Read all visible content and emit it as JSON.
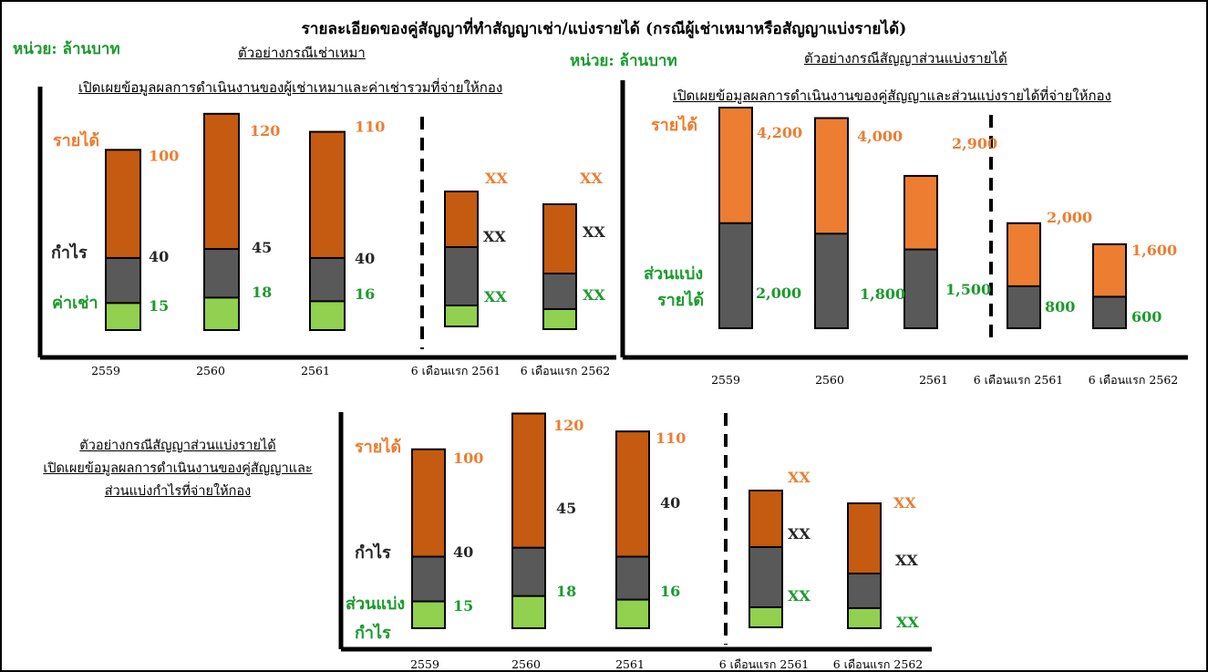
{
  "title": "รายละเอียดของคู่สัญญาที่ทำสัญญาเช่า/แบ่งรายได้ (กรณีผู้เช่าเหมาหรือสัญญาแบ่งรายได้)",
  "unit_label": "หน่วย: ล้านบาท",
  "colors": {
    "revenue_dark": "#c55a11",
    "revenue_light": "#ed7d31",
    "profit": "#595959",
    "share": "#92d050",
    "green_text": "#1a9b2e",
    "dark_text": "#262626"
  },
  "chart_data": [
    {
      "type": "bar",
      "heading": "ตัวอย่างกรณีเช่าเหมา",
      "subtitle": "เปิดเผยข้อมูลผลการดำเนินงานของผู้เช่าเหมาและค่าเช่ารวมที่จ่ายให้กอง",
      "categories": [
        "2559",
        "2560",
        "2561",
        "6 เดือนแรก 2561",
        "6 เดือนแรก 2562"
      ],
      "legend_labels": {
        "revenue": "รายได้",
        "profit": "กำไร",
        "share": "ค่าเช่า"
      },
      "series": [
        {
          "name": "รายได้",
          "values": [
            100,
            120,
            110,
            null,
            null
          ],
          "labels": [
            "100",
            "120",
            "110",
            "XX",
            "XX"
          ]
        },
        {
          "name": "กำไร",
          "values": [
            40,
            45,
            40,
            null,
            null
          ],
          "labels": [
            "40",
            "45",
            "40",
            "XX",
            "XX"
          ]
        },
        {
          "name": "ค่าเช่า",
          "values": [
            15,
            18,
            16,
            null,
            null
          ],
          "labels": [
            "15",
            "18",
            "16",
            "XX",
            "XX"
          ]
        }
      ]
    },
    {
      "type": "bar",
      "heading": "ตัวอย่างกรณีสัญญาส่วนแบ่งรายได้",
      "subtitle": "เปิดเผยข้อมูลผลการดำเนินงานของคู่สัญญาและส่วนแบ่งรายได้ที่จ่ายให้กอง",
      "categories": [
        "2559",
        "2560",
        "2561",
        "6 เดือนแรก 2561",
        "6 เดือนแรก 2562"
      ],
      "legend_labels": {
        "revenue": "รายได้",
        "share_line1": "ส่วนแบ่ง",
        "share_line2": "รายได้"
      },
      "series": [
        {
          "name": "รายได้",
          "values": [
            4200,
            4000,
            2900,
            2000,
            1600
          ],
          "labels": [
            "4,200",
            "4,000",
            "2,900",
            "2,000",
            "1,600"
          ]
        },
        {
          "name": "ส่วนแบ่งรายได้",
          "values": [
            2000,
            1800,
            1500,
            800,
            600
          ],
          "labels": [
            "2,000",
            "1,800",
            "1,500",
            "800",
            "600"
          ]
        }
      ]
    },
    {
      "type": "bar",
      "heading": "ตัวอย่างกรณีสัญญาส่วนแบ่งรายได้",
      "subtitle_lines": [
        "เปิดเผยข้อมูลผลการดำเนินงานของคู่สัญญาและ",
        "ส่วนแบ่งกำไรที่จ่ายให้กอง"
      ],
      "categories": [
        "2559",
        "2560",
        "2561",
        "6 เดือนแรก 2561",
        "6 เดือนแรก 2562"
      ],
      "legend_labels": {
        "revenue": "รายได้",
        "profit": "กำไร",
        "share_line1": "ส่วนแบ่ง",
        "share_line2": "กำไร"
      },
      "series": [
        {
          "name": "รายได้",
          "values": [
            100,
            120,
            110,
            null,
            null
          ],
          "labels": [
            "100",
            "120",
            "110",
            "XX",
            "XX"
          ]
        },
        {
          "name": "กำไร",
          "values": [
            40,
            45,
            40,
            null,
            null
          ],
          "labels": [
            "40",
            "45",
            "40",
            "XX",
            "XX"
          ]
        },
        {
          "name": "ส่วนแบ่งกำไร",
          "values": [
            15,
            18,
            16,
            null,
            null
          ],
          "labels": [
            "15",
            "18",
            "16",
            "XX",
            "XX"
          ]
        }
      ]
    }
  ]
}
